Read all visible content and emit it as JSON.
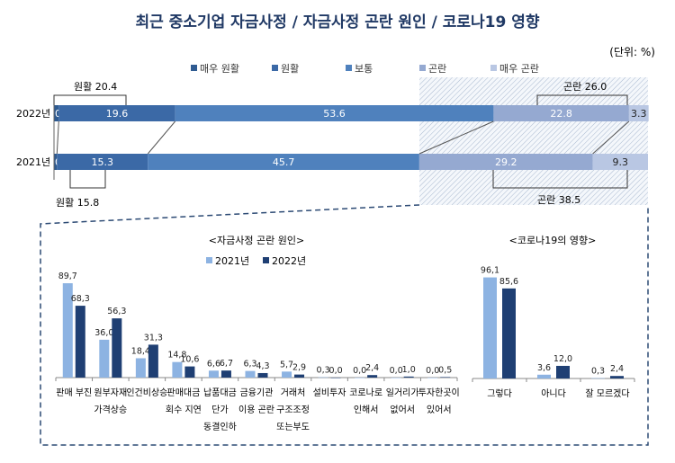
{
  "title": "최근 중소기업 자금사정 / 자금사정 곤란 원인 / 코로나19 영향",
  "unit": "(단위: %)",
  "chart_data": [
    {
      "type": "bar",
      "orientation": "horizontal-stacked",
      "categories": [
        "2022년",
        "2021년"
      ],
      "series": [
        {
          "name": "매우 원활",
          "values": [
            0.8,
            0.5
          ],
          "color": "#2f5b91"
        },
        {
          "name": "원활",
          "values": [
            19.6,
            15.3
          ],
          "color": "#3b69a6"
        },
        {
          "name": "보통",
          "values": [
            53.6,
            45.7
          ],
          "color": "#4f81bd"
        },
        {
          "name": "곤란",
          "values": [
            22.8,
            29.2
          ],
          "color": "#95a9d1"
        },
        {
          "name": "매우 곤란",
          "values": [
            3.3,
            9.3
          ],
          "color": "#b9c7e3"
        }
      ],
      "annotations": {
        "smooth_2022": "원활 20.4",
        "smooth_2021": "원활 15.8",
        "difficult_2022": "곤란 26.0",
        "difficult_2021": "곤란 38.5"
      },
      "xlim": [
        0,
        100
      ],
      "legend": "top"
    },
    {
      "type": "bar",
      "title": "<자금사정 곤란 원인>",
      "categories": [
        [
          "판매 부진"
        ],
        [
          "원부자재",
          "가격상승"
        ],
        [
          "인건비상승"
        ],
        [
          "판매대금",
          "회수 지연"
        ],
        [
          "납품대금",
          "단가",
          "동결인하"
        ],
        [
          "금융기관",
          "이용 곤란"
        ],
        [
          "거래처",
          "구조조정",
          "또는부도"
        ],
        [
          "설비투자"
        ],
        [
          "코로나로",
          "인해서"
        ],
        [
          "일거리가",
          "없어서"
        ],
        [
          "투자한곳이",
          "있어서"
        ]
      ],
      "series": [
        {
          "name": "2021년",
          "values": [
            89.7,
            36.0,
            18.4,
            14.8,
            6.6,
            6.3,
            5.7,
            0.3,
            0.0,
            0.0,
            0.0
          ],
          "labels": [
            "89,7",
            "36,0",
            "18,4",
            "14,8",
            "6,6",
            "6,3",
            "5,7",
            "0,3",
            "0,0",
            "0,0",
            "0,0"
          ],
          "color": "#8db3e2"
        },
        {
          "name": "2022년",
          "values": [
            68.3,
            56.3,
            31.3,
            10.6,
            6.7,
            4.3,
            2.9,
            0.0,
            2.4,
            1.0,
            0.5
          ],
          "labels": [
            "68,3",
            "56,3",
            "31,3",
            "10,6",
            "6,7",
            "4,3",
            "2,9",
            "0,0",
            "2,4",
            "1,0",
            "0,5"
          ],
          "color": "#1f3f73"
        }
      ],
      "legend": "top"
    },
    {
      "type": "bar",
      "title": "<코로나19의 영향>",
      "categories": [
        [
          "그렇다"
        ],
        [
          "아니다"
        ],
        [
          "잘 모르겠다"
        ]
      ],
      "series": [
        {
          "name": "2021년",
          "values": [
            96.1,
            3.6,
            0.3
          ],
          "labels": [
            "96,1",
            "3,6",
            "0,3"
          ],
          "color": "#8db3e2"
        },
        {
          "name": "2022년",
          "values": [
            85.6,
            12.0,
            2.4
          ],
          "labels": [
            "85,6",
            "12,0",
            "2,4"
          ],
          "color": "#1f3f73"
        }
      ]
    }
  ]
}
